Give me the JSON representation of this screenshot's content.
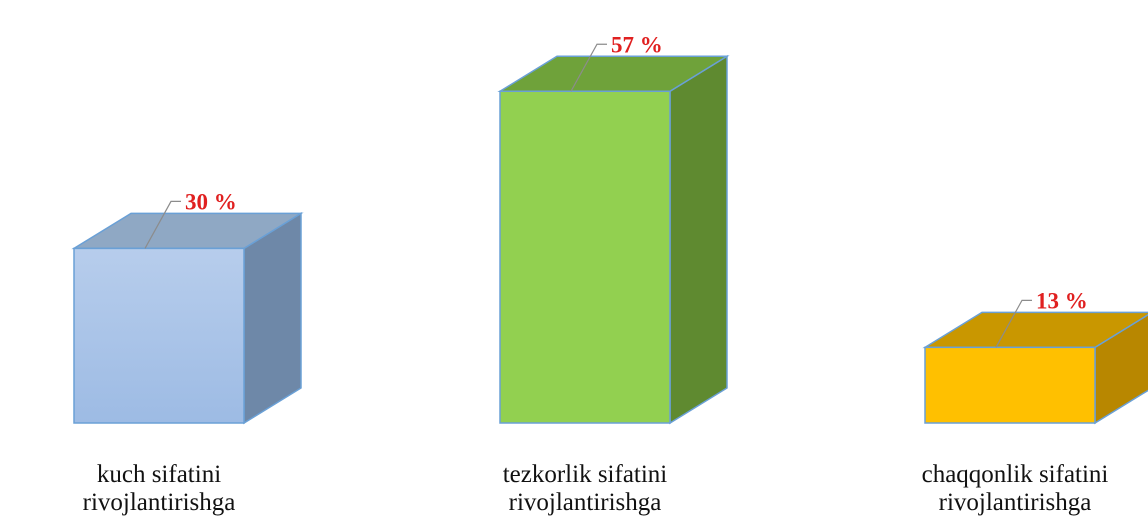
{
  "chart_data": {
    "type": "bar",
    "style": "3d-column",
    "title": "",
    "xlabel": "",
    "ylabel": "",
    "ylim": [
      0,
      60
    ],
    "grid": false,
    "legend": "none",
    "categories": [
      [
        "kuch sifatini",
        "rivojlantirishga"
      ],
      [
        "tezkorlik sifatini",
        "rivojlantirishga"
      ],
      [
        "chaqqonlik sifatini",
        "rivojlantirishga"
      ]
    ],
    "values": [
      30,
      57,
      13
    ],
    "data_labels": [
      "30 %",
      "57 %",
      "13 %"
    ],
    "colors": [
      {
        "front": "#a9c4e8",
        "top": "#8fa8c4",
        "side": "#6e88a8",
        "edge": "#6aa0d6"
      },
      {
        "front": "#92d050",
        "top": "#6fa23a",
        "side": "#5f8a30",
        "edge": "#6aa0d6"
      },
      {
        "front": "#ffc000",
        "top": "#c99700",
        "side": "#b88700",
        "edge": "#6aa0d6"
      }
    ],
    "label_color": "#e02020"
  }
}
